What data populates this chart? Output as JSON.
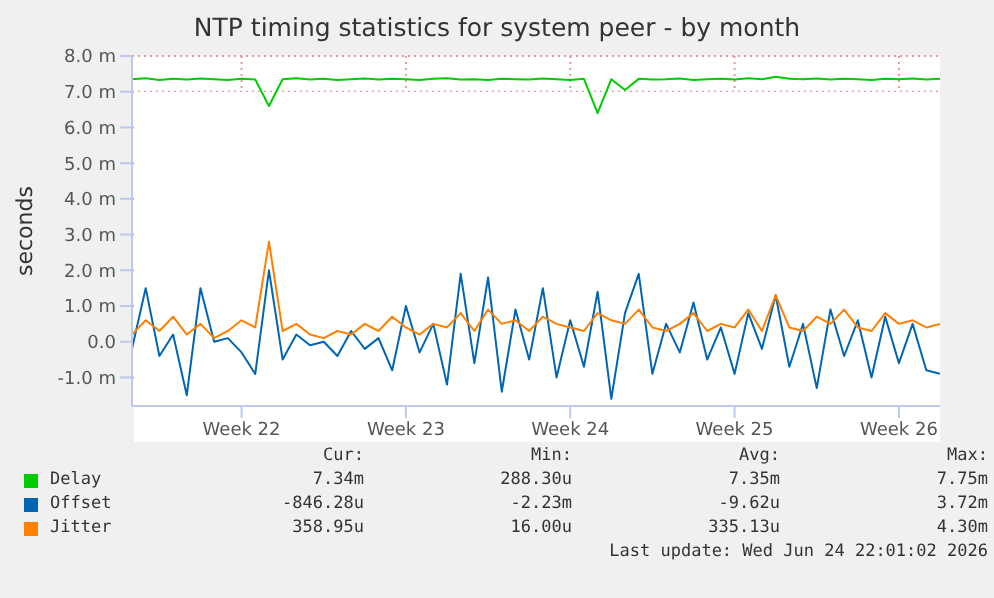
{
  "chart_data": {
    "type": "line",
    "title": "NTP timing statistics for system peer - by month",
    "ylabel": "seconds",
    "categories": [
      null,
      null,
      null,
      null,
      null,
      null,
      null,
      null,
      "Week 22",
      null,
      null,
      null,
      null,
      null,
      null,
      null,
      null,
      null,
      null,
      null,
      "Week 23",
      null,
      null,
      null,
      null,
      null,
      null,
      null,
      null,
      null,
      null,
      null,
      "Week 24",
      null,
      null,
      null,
      null,
      null,
      null,
      null,
      null,
      null,
      null,
      null,
      "Week 25",
      null,
      null,
      null,
      null,
      null,
      null,
      null,
      null,
      null,
      null,
      null,
      "Week 26",
      null,
      null,
      null
    ],
    "series": [
      {
        "name": "Delay",
        "color": "#00cc00",
        "values": [
          7.35,
          7.38,
          7.33,
          7.36,
          7.34,
          7.37,
          7.35,
          7.33,
          7.36,
          7.34,
          6.6,
          7.35,
          7.38,
          7.34,
          7.36,
          7.33,
          7.35,
          7.37,
          7.34,
          7.36,
          7.35,
          7.33,
          7.36,
          7.38,
          7.34,
          7.35,
          7.33,
          7.36,
          7.35,
          7.34,
          7.37,
          7.35,
          7.33,
          7.36,
          6.4,
          7.35,
          7.05,
          7.36,
          7.34,
          7.35,
          7.37,
          7.33,
          7.35,
          7.36,
          7.34,
          7.38,
          7.35,
          7.42,
          7.36,
          7.35,
          7.37,
          7.34,
          7.36,
          7.35,
          7.33,
          7.36,
          7.35,
          7.37,
          7.34,
          7.36
        ]
      },
      {
        "name": "Offset",
        "color": "#0066b3",
        "values": [
          -0.2,
          1.5,
          -0.4,
          0.2,
          -1.5,
          1.5,
          0.0,
          0.1,
          -0.3,
          -0.9,
          2.0,
          -0.5,
          0.2,
          -0.1,
          0.0,
          -0.4,
          0.3,
          -0.2,
          0.1,
          -0.8,
          1.0,
          -0.3,
          0.5,
          -1.2,
          1.9,
          -0.6,
          1.8,
          -1.4,
          0.9,
          -0.5,
          1.5,
          -1.0,
          0.6,
          -0.7,
          1.4,
          -1.6,
          0.8,
          1.9,
          -0.9,
          0.5,
          -0.3,
          1.1,
          -0.5,
          0.4,
          -0.9,
          0.8,
          -0.2,
          1.3,
          -0.7,
          0.5,
          -1.3,
          0.9,
          -0.4,
          0.6,
          -1.0,
          0.7,
          -0.6,
          0.5,
          -0.8,
          -0.9
        ]
      },
      {
        "name": "Jitter",
        "color": "#ff8000",
        "values": [
          0.2,
          0.6,
          0.3,
          0.7,
          0.2,
          0.5,
          0.1,
          0.3,
          0.6,
          0.4,
          2.8,
          0.3,
          0.5,
          0.2,
          0.1,
          0.3,
          0.2,
          0.5,
          0.3,
          0.7,
          0.4,
          0.2,
          0.5,
          0.4,
          0.8,
          0.3,
          0.9,
          0.5,
          0.6,
          0.3,
          0.7,
          0.5,
          0.4,
          0.3,
          0.8,
          0.6,
          0.5,
          0.9,
          0.4,
          0.3,
          0.5,
          0.8,
          0.3,
          0.5,
          0.4,
          0.9,
          0.3,
          1.3,
          0.4,
          0.3,
          0.7,
          0.5,
          0.9,
          0.4,
          0.3,
          0.8,
          0.5,
          0.6,
          0.4,
          0.5
        ]
      }
    ],
    "ylim": [
      -1.8,
      8.0
    ],
    "yticks": [
      {
        "value": -1,
        "label": "-1.0 m"
      },
      {
        "value": 0,
        "label": "0.0"
      },
      {
        "value": 1,
        "label": "1.0 m"
      },
      {
        "value": 2,
        "label": "2.0 m"
      },
      {
        "value": 3,
        "label": "3.0 m"
      },
      {
        "value": 4,
        "label": "4.0 m"
      },
      {
        "value": 5,
        "label": "5.0 m"
      },
      {
        "value": 6,
        "label": "6.0 m"
      },
      {
        "value": 7,
        "label": "7.0 m"
      },
      {
        "value": 8,
        "label": "8.0 m"
      }
    ],
    "grid": true,
    "legend": "bottom",
    "marker": "none",
    "line_style": "solid",
    "annotations": [
      "Cur:",
      "Min:",
      "Avg:",
      "Max:",
      "7.34m",
      "288.30u",
      "7.35m",
      "7.75m",
      "-846.28u",
      "-2.23m",
      "-9.62u",
      "3.72m",
      "358.95u",
      "16.00u",
      "335.13u",
      "4.30m",
      "Last update: Wed Jun 24 22:01:02 2026"
    ]
  }
}
